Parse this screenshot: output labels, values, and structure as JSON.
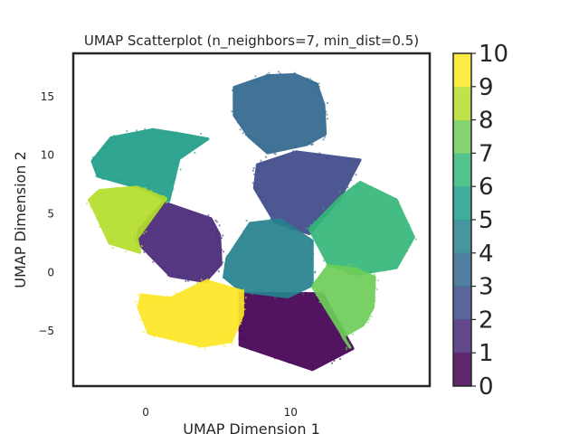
{
  "chart_data": {
    "type": "scatter",
    "title": "UMAP Scatterplot (n_neighbors=7, min_dist=0.5)",
    "xlabel": "UMAP Dimension 1",
    "ylabel": "UMAP Dimension 2",
    "xlim": [
      -5,
      19.6
    ],
    "ylim": [
      -9.7,
      18.7
    ],
    "xticks": [
      0,
      10
    ],
    "yticks": [
      -5,
      0,
      5,
      10,
      15
    ],
    "grid": false,
    "colorbar": {
      "min": 0,
      "max": 10,
      "ticks": [
        0,
        1,
        2,
        3,
        4,
        5,
        6,
        7,
        8,
        9,
        10
      ],
      "colors": [
        "#440154",
        "#482878",
        "#3e4989",
        "#31688e",
        "#26828e",
        "#1f9e89",
        "#35b779",
        "#6ece58",
        "#b5de2b",
        "#fde725"
      ]
    },
    "clusters": [
      {
        "label": 0,
        "color": "#440154",
        "center": [
          10.5,
          -4.5
        ],
        "region": [
          [
            6.5,
            -1.8
          ],
          [
            12.2,
            -1.8
          ],
          [
            14.3,
            -6.5
          ],
          [
            11.5,
            -8.3
          ],
          [
            6.5,
            -6.2
          ]
        ]
      },
      {
        "label": 1,
        "color": "#482878",
        "center": [
          2.7,
          2.5
        ],
        "region": [
          [
            1.2,
            6
          ],
          [
            4.5,
            4.6
          ],
          [
            5.1,
            3.2
          ],
          [
            5.2,
            0.7
          ],
          [
            4.1,
            -0.8
          ],
          [
            1.7,
            -0.3
          ],
          [
            -0.6,
            2.6
          ],
          [
            -0.5,
            3.6
          ]
        ]
      },
      {
        "label": 2,
        "color": "#3e4989",
        "center": [
          12.5,
          7.3
        ],
        "region": [
          [
            7.7,
            9.2
          ],
          [
            10.4,
            10.3
          ],
          [
            14.8,
            9.6
          ],
          [
            13.4,
            6.3
          ],
          [
            11.3,
            3.3
          ],
          [
            8.9,
            4.3
          ],
          [
            7.5,
            7.2
          ]
        ]
      },
      {
        "label": 3,
        "color": "#31688e",
        "center": [
          10.2,
          14.8
        ],
        "region": [
          [
            6.1,
            15.8
          ],
          [
            8.4,
            16.8
          ],
          [
            10.3,
            16.9
          ],
          [
            11.8,
            16.1
          ],
          [
            12.3,
            14.3
          ],
          [
            12.4,
            11.8
          ],
          [
            11.1,
            10.9
          ],
          [
            8.4,
            10.2
          ],
          [
            7.1,
            11.6
          ],
          [
            6.1,
            13.4
          ]
        ]
      },
      {
        "label": 4,
        "color": "#26828e",
        "center": [
          10.0,
          1.8
        ],
        "region": [
          [
            5.6,
            1.2
          ],
          [
            7.2,
            4.2
          ],
          [
            9.3,
            4.5
          ],
          [
            11.5,
            2.7
          ],
          [
            11.5,
            -1.1
          ],
          [
            9.8,
            -2.1
          ],
          [
            6.6,
            -1.6
          ],
          [
            5.4,
            -0.4
          ]
        ]
      },
      {
        "label": 5,
        "color": "#1f9e89",
        "center": [
          1.3,
          10.0
        ],
        "region": [
          [
            -3.7,
            9.5
          ],
          [
            -2.4,
            11.5
          ],
          [
            0.5,
            12.2
          ],
          [
            2.5,
            11.8
          ],
          [
            4.3,
            11.4
          ],
          [
            2.3,
            9.7
          ],
          [
            1.6,
            6.1
          ],
          [
            -0.4,
            7.2
          ],
          [
            -3.3,
            8.2
          ]
        ]
      },
      {
        "label": 6,
        "color": "#35b779",
        "center": [
          16.0,
          3.5
        ],
        "region": [
          [
            11.3,
            3.7
          ],
          [
            13.5,
            6.5
          ],
          [
            14.8,
            7.7
          ],
          [
            17.3,
            6.2
          ],
          [
            18.5,
            3.0
          ],
          [
            17.3,
            0.4
          ],
          [
            14.4,
            -0.2
          ],
          [
            12.6,
            0.7
          ]
        ]
      },
      {
        "label": 7,
        "color": "#6ece58",
        "center": [
          14.3,
          -2.5
        ],
        "region": [
          [
            11.5,
            -1.2
          ],
          [
            12.6,
            0.6
          ],
          [
            14.5,
            0.3
          ],
          [
            15.8,
            -0.4
          ],
          [
            15.7,
            -3.0
          ],
          [
            15.0,
            -4.5
          ],
          [
            13.6,
            -5.5
          ],
          [
            14.1,
            -6.4
          ]
        ]
      },
      {
        "label": 8,
        "color": "#b5de2b",
        "center": [
          -0.6,
          4.5
        ],
        "region": [
          [
            -3.9,
            6.2
          ],
          [
            -3.2,
            7.0
          ],
          [
            -0.6,
            7.3
          ],
          [
            1.4,
            6.3
          ],
          [
            -0.6,
            2.9
          ],
          [
            -0.4,
            1.7
          ],
          [
            -2.5,
            2.5
          ]
        ]
      },
      {
        "label": 9,
        "color": "#fde725",
        "center": [
          2.6,
          -3.5
        ],
        "region": [
          [
            -0.3,
            -1.9
          ],
          [
            1.7,
            -2.2
          ],
          [
            4.2,
            -0.7
          ],
          [
            6.7,
            -1.6
          ],
          [
            6.7,
            -3.6
          ],
          [
            5.9,
            -5.9
          ],
          [
            3.9,
            -6.3
          ],
          [
            0.2,
            -5.2
          ],
          [
            -0.5,
            -3.0
          ]
        ]
      }
    ]
  }
}
